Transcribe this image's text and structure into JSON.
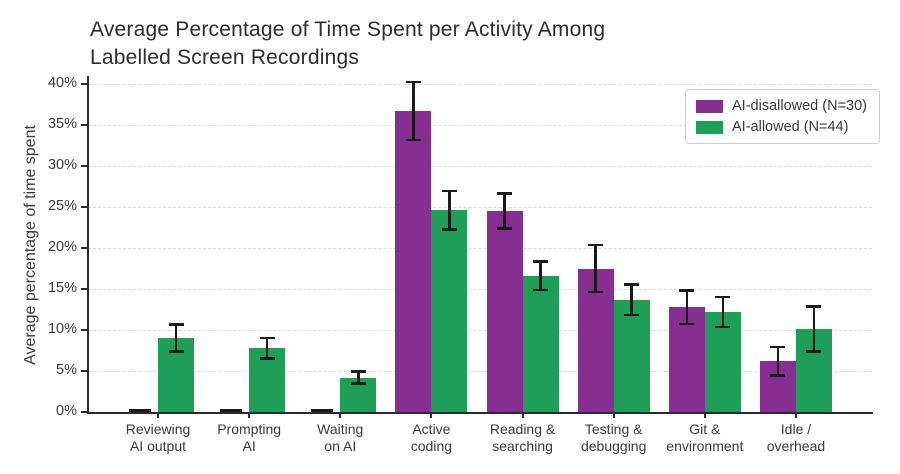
{
  "title": "Average Percentage of Time Spent per Activity Among\nLabelled Screen Recordings",
  "ylabel": "Average percentage of time spent",
  "legend": {
    "items": [
      {
        "label": "AI-disallowed (N=30)",
        "color": "#862E92"
      },
      {
        "label": "AI-allowed (N=44)",
        "color": "#1F9E58"
      }
    ]
  },
  "chart_data": {
    "type": "bar",
    "title": "Average Percentage of Time Spent per Activity Among Labelled Screen Recordings",
    "xlabel": "",
    "ylabel": "Average percentage of time spent",
    "categories": [
      "Reviewing\nAI output",
      "Prompting\nAI",
      "Waiting\non AI",
      "Active\ncoding",
      "Reading &\nsearching",
      "Testing &\ndebugging",
      "Git &\nenvironment",
      "Idle /\noverhead"
    ],
    "series": [
      {
        "name": "AI-disallowed (N=30)",
        "color": "#862E92",
        "values": [
          0.1,
          0.1,
          0.1,
          36.7,
          24.5,
          17.5,
          12.8,
          6.2
        ],
        "errors": [
          0,
          0,
          0,
          3.7,
          2.3,
          3.0,
          2.2,
          1.9
        ]
      },
      {
        "name": "AI-allowed (N=44)",
        "color": "#1F9E58",
        "values": [
          9.0,
          7.8,
          4.2,
          24.6,
          16.6,
          13.7,
          12.2,
          10.1
        ],
        "errors": [
          1.8,
          1.4,
          0.9,
          2.5,
          1.9,
          2.0,
          2.0,
          2.9
        ]
      }
    ],
    "ylim": [
      0,
      40
    ],
    "ytick_step": 5,
    "ytick_labels": [
      "0%",
      "5%",
      "10%",
      "15%",
      "20%",
      "25%",
      "30%",
      "35%",
      "40%"
    ],
    "grid": "horizontal-dashed",
    "legend_position": "top-right",
    "error_bar_color": "#1a1a1a"
  }
}
